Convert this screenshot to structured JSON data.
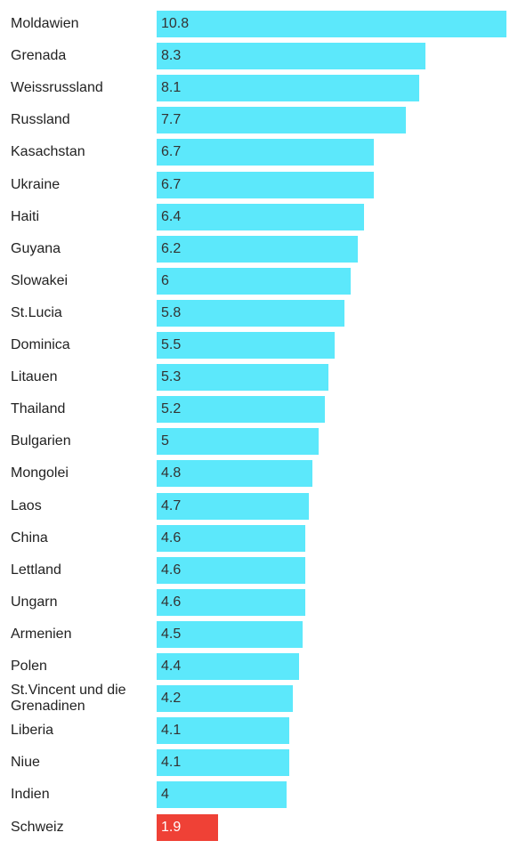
{
  "chart_data": {
    "type": "bar",
    "orientation": "horizontal",
    "categories": [
      "Moldawien",
      "Grenada",
      "Weissrussland",
      "Russland",
      "Kasachstan",
      "Ukraine",
      "Haiti",
      "Guyana",
      "Slowakei",
      "St.Lucia",
      "Dominica",
      "Litauen",
      "Thailand",
      "Bulgarien",
      "Mongolei",
      "Laos",
      "China",
      "Lettland",
      "Ungarn",
      "Armenien",
      "Polen",
      "St.Vincent und die Grenadinen",
      "Liberia",
      "Niue",
      "Indien",
      "Schweiz"
    ],
    "values": [
      10.8,
      8.3,
      8.1,
      7.7,
      6.7,
      6.7,
      6.4,
      6.2,
      6,
      5.8,
      5.5,
      5.3,
      5.2,
      5,
      4.8,
      4.7,
      4.6,
      4.6,
      4.6,
      4.5,
      4.4,
      4.2,
      4.1,
      4.1,
      4,
      1.9
    ],
    "value_labels": [
      "10.8",
      "8.3",
      "8.1",
      "7.7",
      "6.7",
      "6.7",
      "6.4",
      "6.2",
      "6",
      "5.8",
      "5.5",
      "5.3",
      "5.2",
      "5",
      "4.8",
      "4.7",
      "4.6",
      "4.6",
      "4.6",
      "4.5",
      "4.4",
      "4.2",
      "4.1",
      "4.1",
      "4",
      "1.9"
    ],
    "highlight": "Schweiz",
    "xlim": [
      0,
      10.8
    ],
    "title": "",
    "xlabel": "",
    "ylabel": "",
    "grid": false,
    "colors": {
      "bar": "#5ce8fb",
      "highlight": "#ef4136",
      "label": "#222222",
      "value_text": "#333333",
      "highlight_text": "#ffffff"
    }
  }
}
